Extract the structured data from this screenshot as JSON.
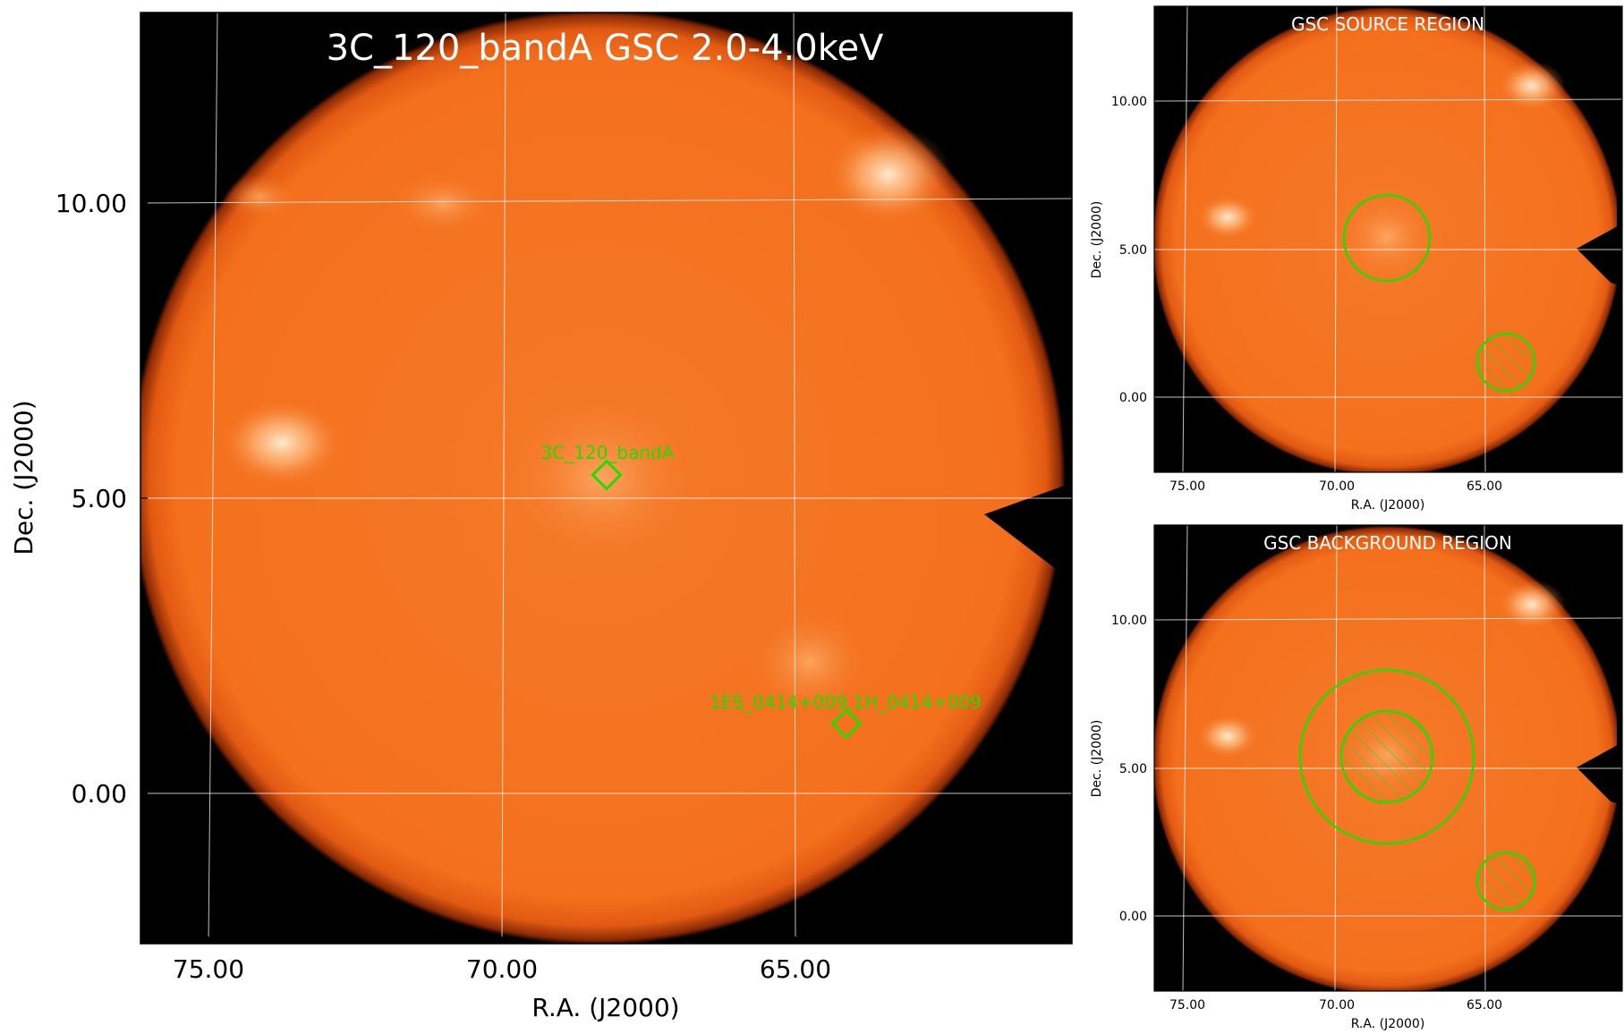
{
  "main_panel": {
    "title": "3C_120_bandA GSC 2.0-4.0keV",
    "xlabel": "R.A. (J2000)",
    "ylabel": "Dec. (J2000)",
    "x_ticks": [
      "75.00",
      "70.00",
      "65.00"
    ],
    "y_ticks": [
      "10.00",
      "5.00",
      "0.00"
    ],
    "sources": [
      {
        "label": "3C_120_bandA"
      },
      {
        "label": "1ES_0414+009,1H_0414+009"
      }
    ]
  },
  "source_panel": {
    "title": "GSC SOURCE REGION",
    "xlabel": "R.A. (J2000)",
    "ylabel": "Dec. (J2000)",
    "x_ticks": [
      "75.00",
      "70.00",
      "65.00"
    ],
    "y_ticks": [
      "10.00",
      "5.00",
      "0.00"
    ]
  },
  "background_panel": {
    "title": "GSC BACKGROUND REGION",
    "xlabel": "R.A. (J2000)",
    "ylabel": "Dec. (J2000)",
    "x_ticks": [
      "75.00",
      "70.00",
      "65.00"
    ],
    "y_ticks": [
      "10.00",
      "5.00",
      "0.00"
    ]
  },
  "colors": {
    "image_orange": "#f4731f",
    "region_green": "#22dd00",
    "background": "#000000"
  }
}
